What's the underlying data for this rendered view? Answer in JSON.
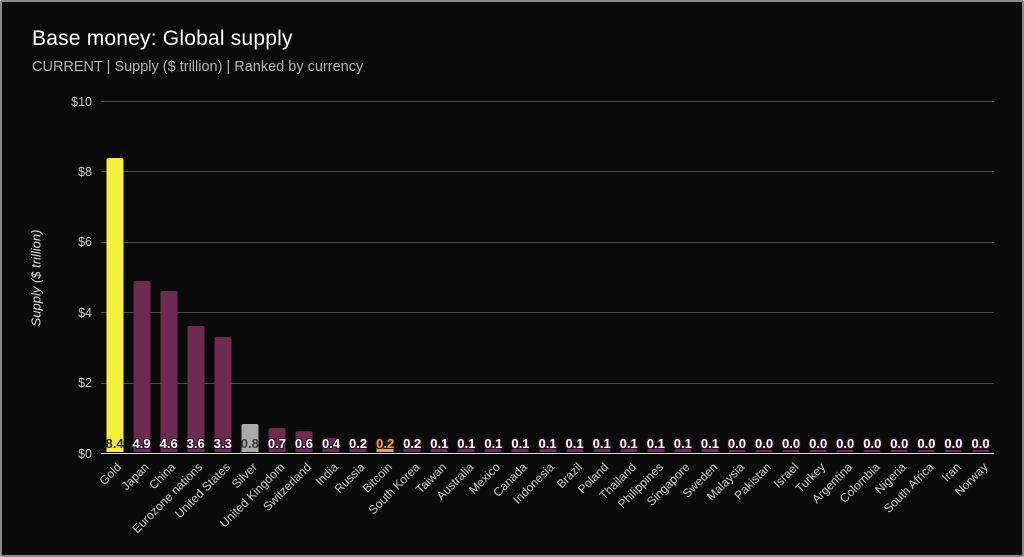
{
  "header": {
    "title": "Base money: Global supply",
    "subtitle": "CURRENT | Supply ($ trillion) | Ranked by currency"
  },
  "chart_data": {
    "type": "bar",
    "title": "Base money: Global supply",
    "subtitle": "CURRENT | Supply ($ trillion) | Ranked by currency",
    "xlabel": "",
    "ylabel": "Supply ($ trillion)",
    "ylim": [
      0,
      10
    ],
    "grid": true,
    "legend": "none",
    "background": "#0a0a0a",
    "y_ticks": [
      {
        "label": "$0",
        "value": 0
      },
      {
        "label": "$2",
        "value": 2
      },
      {
        "label": "$4",
        "value": 4
      },
      {
        "label": "$6",
        "value": 6
      },
      {
        "label": "$8",
        "value": 8
      },
      {
        "label": "$10",
        "value": 10
      }
    ],
    "colors": {
      "default_bar": "#6e2b52",
      "gold_bar": "#f6ef3d",
      "silver_bar": "#ababab",
      "bitcoin_bar": "#f2a338",
      "value_label_default": "#ffffff",
      "value_label_outline": "#30122a",
      "gridline": "#4a4a4a",
      "axis_line": "#dedede"
    },
    "bars": [
      {
        "label": "Gold",
        "value": 8.4,
        "display": "8.4",
        "color": "#f6ef3d",
        "value_color": "#262626",
        "outline": false
      },
      {
        "label": "Japan",
        "value": 4.9,
        "display": "4.9"
      },
      {
        "label": "China",
        "value": 4.6,
        "display": "4.6"
      },
      {
        "label": "Eurozone nations",
        "value": 3.6,
        "display": "3.6"
      },
      {
        "label": "United States",
        "value": 3.3,
        "display": "3.3"
      },
      {
        "label": "Silver",
        "value": 0.8,
        "display": "0.8",
        "color": "#ababab",
        "value_color": "#3d3d3d",
        "outline": false
      },
      {
        "label": "United Kingdom",
        "value": 0.7,
        "display": "0.7"
      },
      {
        "label": "Switzerland",
        "value": 0.6,
        "display": "0.6"
      },
      {
        "label": "India",
        "value": 0.4,
        "display": "0.4"
      },
      {
        "label": "Russia",
        "value": 0.2,
        "display": "0.2"
      },
      {
        "label": "Bitcoin",
        "value": 0.2,
        "display": "0.2",
        "color": "#f2a338",
        "value_color": "#f0a030",
        "outline": true
      },
      {
        "label": "South Korea",
        "value": 0.2,
        "display": "0.2"
      },
      {
        "label": "Taiwan",
        "value": 0.1,
        "display": "0.1"
      },
      {
        "label": "Australia",
        "value": 0.1,
        "display": "0.1"
      },
      {
        "label": "Mexico",
        "value": 0.1,
        "display": "0.1"
      },
      {
        "label": "Canada",
        "value": 0.1,
        "display": "0.1"
      },
      {
        "label": "Indonesia",
        "value": 0.1,
        "display": "0.1"
      },
      {
        "label": "Brazil",
        "value": 0.1,
        "display": "0.1"
      },
      {
        "label": "Poland",
        "value": 0.1,
        "display": "0.1"
      },
      {
        "label": "Thailand",
        "value": 0.1,
        "display": "0.1"
      },
      {
        "label": "Philippines",
        "value": 0.1,
        "display": "0.1"
      },
      {
        "label": "Singapore",
        "value": 0.1,
        "display": "0.1"
      },
      {
        "label": "Sweden",
        "value": 0.1,
        "display": "0.1"
      },
      {
        "label": "Malaysia",
        "value": 0.0,
        "display": "0.0"
      },
      {
        "label": "Pakistan",
        "value": 0.0,
        "display": "0.0"
      },
      {
        "label": "Israel",
        "value": 0.0,
        "display": "0.0"
      },
      {
        "label": "Turkey",
        "value": 0.0,
        "display": "0.0"
      },
      {
        "label": "Argentina",
        "value": 0.0,
        "display": "0.0"
      },
      {
        "label": "Colombia",
        "value": 0.0,
        "display": "0.0"
      },
      {
        "label": "Nigeria",
        "value": 0.0,
        "display": "0.0"
      },
      {
        "label": "South Africa",
        "value": 0.0,
        "display": "0.0"
      },
      {
        "label": "Iran",
        "value": 0.0,
        "display": "0.0"
      },
      {
        "label": "Norway",
        "value": 0.0,
        "display": "0.0"
      }
    ]
  }
}
